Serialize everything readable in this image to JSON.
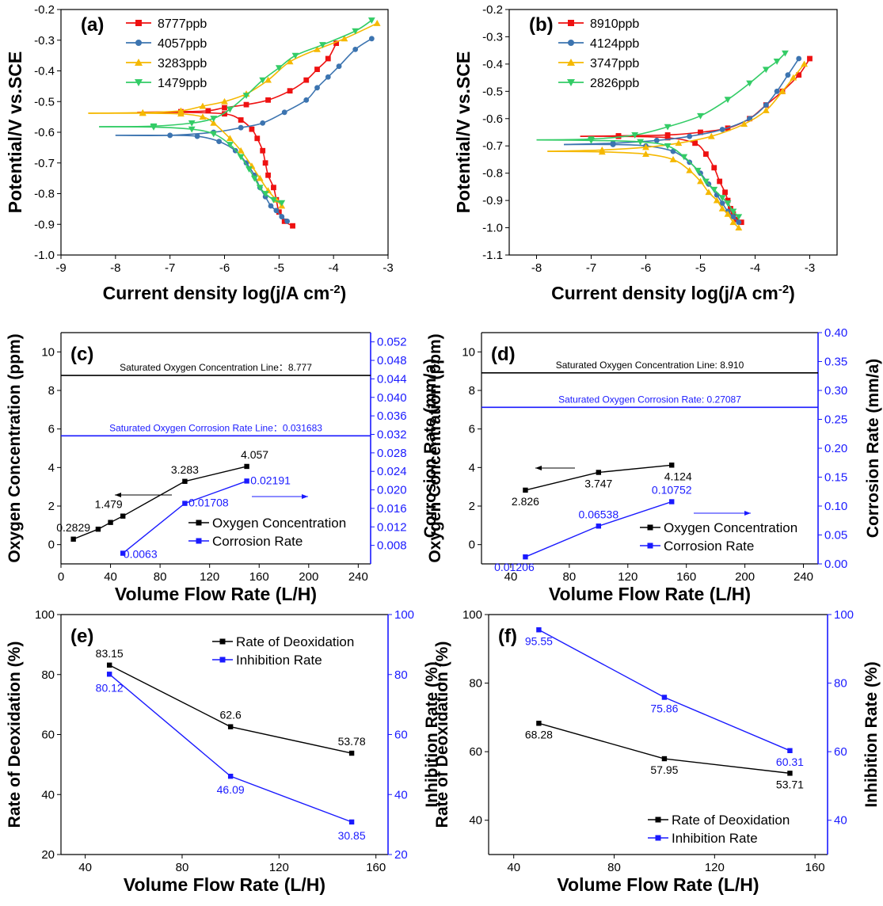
{
  "chart_data": [
    {
      "panel": "(a)",
      "type": "line",
      "xlabel": "Current density log(j/A cm-2)",
      "ylabel": "Potential/V vs.SCE",
      "xlim": [
        -9,
        -3
      ],
      "ylim": [
        -1.0,
        -0.2
      ],
      "xticks": [
        -9,
        -8,
        -7,
        -6,
        -5,
        -4,
        -3
      ],
      "yticks": [
        -1.0,
        -0.9,
        -0.8,
        -0.7,
        -0.6,
        -0.5,
        -0.4,
        -0.3,
        -0.2
      ],
      "legend_position": "top-left",
      "series": [
        {
          "name": "8777ppb",
          "color": "#ee1111",
          "marker": "square",
          "x": [
            -7.6,
            -6.8,
            -6.0,
            -5.7,
            -5.5,
            -5.4,
            -5.3,
            -5.25,
            -5.2,
            -5.1,
            -5.05,
            -5.0,
            -4.9,
            -4.75
          ],
          "y": [
            -0.535,
            -0.535,
            -0.54,
            -0.56,
            -0.59,
            -0.62,
            -0.66,
            -0.7,
            -0.74,
            -0.78,
            -0.82,
            -0.86,
            -0.89,
            -0.905
          ]
        },
        {
          "name": "8777ppb",
          "color": "#ee1111",
          "marker": "square",
          "x": [
            -7.6,
            -6.8,
            -6.3,
            -6.0,
            -5.6,
            -5.2,
            -4.8,
            -4.5,
            -4.3,
            -4.1,
            -3.95
          ],
          "y": [
            -0.535,
            -0.533,
            -0.53,
            -0.52,
            -0.51,
            -0.495,
            -0.465,
            -0.43,
            -0.395,
            -0.36,
            -0.31
          ]
        },
        {
          "name": "4057ppb",
          "color": "#3c74b0",
          "marker": "circle",
          "x": [
            -8.0,
            -7.0,
            -6.5,
            -6.1,
            -5.8,
            -5.6,
            -5.45,
            -5.35,
            -5.25,
            -5.15,
            -5.05,
            -4.95,
            -4.85
          ],
          "y": [
            -0.61,
            -0.61,
            -0.613,
            -0.63,
            -0.66,
            -0.7,
            -0.74,
            -0.78,
            -0.81,
            -0.84,
            -0.855,
            -0.875,
            -0.89
          ]
        },
        {
          "name": "4057ppb",
          "color": "#3c74b0",
          "marker": "circle",
          "x": [
            -8.0,
            -7.0,
            -6.2,
            -5.7,
            -5.3,
            -4.9,
            -4.5,
            -4.3,
            -4.1,
            -3.9,
            -3.6,
            -3.3
          ],
          "y": [
            -0.61,
            -0.61,
            -0.6,
            -0.585,
            -0.57,
            -0.535,
            -0.495,
            -0.455,
            -0.42,
            -0.385,
            -0.33,
            -0.295
          ]
        },
        {
          "name": "3283ppb",
          "color": "#f5b800",
          "marker": "triangle-up",
          "x": [
            -8.5,
            -7.5,
            -6.8,
            -6.4,
            -6.2,
            -5.9,
            -5.7,
            -5.5,
            -5.35,
            -5.2,
            -5.05,
            -4.95
          ],
          "y": [
            -0.538,
            -0.538,
            -0.54,
            -0.55,
            -0.57,
            -0.62,
            -0.66,
            -0.71,
            -0.75,
            -0.79,
            -0.82,
            -0.84
          ]
        },
        {
          "name": "3283ppb",
          "color": "#f5b800",
          "marker": "triangle-up",
          "x": [
            -8.5,
            -7.5,
            -6.8,
            -6.4,
            -6.0,
            -5.6,
            -5.2,
            -4.8,
            -4.3,
            -3.8,
            -3.2
          ],
          "y": [
            -0.538,
            -0.536,
            -0.53,
            -0.515,
            -0.5,
            -0.475,
            -0.43,
            -0.37,
            -0.33,
            -0.295,
            -0.245
          ]
        },
        {
          "name": "1479ppb",
          "color": "#33cc66",
          "marker": "triangle-down",
          "x": [
            -8.3,
            -7.3,
            -6.6,
            -6.2,
            -5.9,
            -5.7,
            -5.55,
            -5.45,
            -5.35,
            -5.25,
            -5.1,
            -4.95
          ],
          "y": [
            -0.582,
            -0.583,
            -0.59,
            -0.605,
            -0.64,
            -0.68,
            -0.72,
            -0.75,
            -0.78,
            -0.8,
            -0.82,
            -0.83
          ]
        },
        {
          "name": "1479ppb",
          "color": "#33cc66",
          "marker": "triangle-down",
          "x": [
            -8.3,
            -7.3,
            -6.6,
            -6.2,
            -5.9,
            -5.6,
            -5.3,
            -5.0,
            -4.7,
            -4.2,
            -3.6,
            -3.3
          ],
          "y": [
            -0.582,
            -0.58,
            -0.57,
            -0.555,
            -0.525,
            -0.48,
            -0.43,
            -0.39,
            -0.35,
            -0.315,
            -0.27,
            -0.235
          ]
        }
      ]
    },
    {
      "panel": "(b)",
      "type": "line",
      "xlabel": "Current density log(j/A cm-2)",
      "ylabel": "Potential/V vs.SCE",
      "xlim": [
        -8.5,
        -2.5
      ],
      "ylim": [
        -1.1,
        -0.2
      ],
      "xticks": [
        -8,
        -7,
        -6,
        -5,
        -4,
        -3
      ],
      "yticks": [
        -1.1,
        -1.0,
        -0.9,
        -0.8,
        -0.7,
        -0.6,
        -0.5,
        -0.4,
        -0.3,
        -0.2
      ],
      "legend_position": "top-left",
      "series": [
        {
          "name": "8910ppb",
          "color": "#ee1111",
          "marker": "square",
          "x": [
            -7.2,
            -6.5,
            -5.6,
            -5.1,
            -4.9,
            -4.75,
            -4.65,
            -4.55,
            -4.5,
            -4.45,
            -4.4,
            -4.35,
            -4.25
          ],
          "y": [
            -0.665,
            -0.665,
            -0.67,
            -0.69,
            -0.73,
            -0.78,
            -0.83,
            -0.87,
            -0.9,
            -0.93,
            -0.95,
            -0.97,
            -0.98
          ]
        },
        {
          "name": "8910ppb",
          "color": "#ee1111",
          "marker": "square",
          "x": [
            -7.2,
            -6.5,
            -5.6,
            -5.0,
            -4.5,
            -4.1,
            -3.8,
            -3.5,
            -3.2,
            -3.0
          ],
          "y": [
            -0.665,
            -0.663,
            -0.66,
            -0.65,
            -0.635,
            -0.6,
            -0.55,
            -0.5,
            -0.44,
            -0.38
          ]
        },
        {
          "name": "4124ppb",
          "color": "#3c74b0",
          "marker": "circle",
          "x": [
            -7.5,
            -6.6,
            -6.0,
            -5.5,
            -5.2,
            -5.0,
            -4.85,
            -4.7,
            -4.6,
            -4.5,
            -4.4,
            -4.3
          ],
          "y": [
            -0.695,
            -0.695,
            -0.7,
            -0.72,
            -0.76,
            -0.8,
            -0.84,
            -0.88,
            -0.91,
            -0.94,
            -0.96,
            -0.98
          ]
        },
        {
          "name": "4124ppb",
          "color": "#3c74b0",
          "marker": "circle",
          "x": [
            -7.5,
            -6.6,
            -5.8,
            -5.2,
            -4.6,
            -4.1,
            -3.8,
            -3.6,
            -3.4,
            -3.2
          ],
          "y": [
            -0.695,
            -0.69,
            -0.68,
            -0.665,
            -0.64,
            -0.6,
            -0.55,
            -0.5,
            -0.44,
            -0.38
          ]
        },
        {
          "name": "3747ppb",
          "color": "#f5b800",
          "marker": "triangle-up",
          "x": [
            -7.8,
            -6.8,
            -6.0,
            -5.5,
            -5.2,
            -5.0,
            -4.85,
            -4.7,
            -4.6,
            -4.5,
            -4.4,
            -4.3
          ],
          "y": [
            -0.72,
            -0.722,
            -0.73,
            -0.75,
            -0.79,
            -0.83,
            -0.87,
            -0.9,
            -0.93,
            -0.95,
            -0.98,
            -1.0
          ]
        },
        {
          "name": "3747ppb",
          "color": "#f5b800",
          "marker": "triangle-up",
          "x": [
            -7.8,
            -6.8,
            -6.0,
            -5.4,
            -4.8,
            -4.2,
            -3.8,
            -3.5,
            -3.3,
            -3.1
          ],
          "y": [
            -0.72,
            -0.715,
            -0.705,
            -0.69,
            -0.665,
            -0.62,
            -0.57,
            -0.5,
            -0.45,
            -0.4
          ]
        },
        {
          "name": "2826ppb",
          "color": "#33cc66",
          "marker": "triangle-down",
          "x": [
            -8.0,
            -7.0,
            -6.1,
            -5.6,
            -5.3,
            -5.05,
            -4.9,
            -4.75,
            -4.6,
            -4.5,
            -4.4,
            -4.3
          ],
          "y": [
            -0.678,
            -0.68,
            -0.685,
            -0.7,
            -0.74,
            -0.79,
            -0.83,
            -0.86,
            -0.89,
            -0.91,
            -0.94,
            -0.96
          ]
        },
        {
          "name": "2826ppb",
          "color": "#33cc66",
          "marker": "triangle-down",
          "x": [
            -8.0,
            -7.0,
            -6.2,
            -5.6,
            -5.0,
            -4.5,
            -4.1,
            -3.8,
            -3.6,
            -3.45
          ],
          "y": [
            -0.678,
            -0.675,
            -0.66,
            -0.63,
            -0.59,
            -0.53,
            -0.47,
            -0.42,
            -0.39,
            -0.36
          ]
        }
      ]
    },
    {
      "panel": "(c)",
      "type": "line",
      "xlabel": "Volume Flow Rate (L/H)",
      "ylabel": "Oxygen Concentration (ppm)",
      "ylabel_right": "Corrosion Rate (mm/a)",
      "xlim": [
        0,
        250
      ],
      "ylim": [
        -1,
        11
      ],
      "ylim_right": [
        0.004,
        0.054
      ],
      "xticks": [
        0,
        40,
        80,
        120,
        160,
        200,
        240
      ],
      "yticks": [
        0,
        2,
        4,
        6,
        8,
        10
      ],
      "yticks_right": [
        "0.008",
        "0.012",
        "0.016",
        "0.020",
        "0.024",
        "0.028",
        "0.032",
        "0.036",
        "0.040",
        "0.044",
        "0.048",
        "0.052"
      ],
      "legend_position": "center-right",
      "reference_lines": [
        {
          "label": "Saturated Oxygen Concentration Line：8.777",
          "axis": "left",
          "value": 8.777,
          "color": "#000000"
        },
        {
          "label": "Saturated Oxygen Corrosion Rate Line：0.031683",
          "axis": "right",
          "value": 0.031683,
          "color": "#1a1aff"
        }
      ],
      "series": [
        {
          "name": "Oxygen Concentration",
          "axis": "left",
          "color": "#000000",
          "marker": "square",
          "x": [
            10,
            30,
            40,
            50,
            100,
            150
          ],
          "y": [
            0.2829,
            0.8,
            1.15,
            1.479,
            3.283,
            4.057
          ],
          "labels": [
            "0.2829",
            "",
            "",
            "1.479",
            "3.283",
            "4.057"
          ]
        },
        {
          "name": "Corrosion Rate",
          "axis": "right",
          "color": "#1a1aff",
          "marker": "square",
          "x": [
            50,
            100,
            150
          ],
          "y": [
            0.0063,
            0.01708,
            0.02191
          ],
          "labels": [
            "0.0063",
            "0.01708",
            "0.02191"
          ]
        }
      ]
    },
    {
      "panel": "(d)",
      "type": "line",
      "xlabel": "Volume Flow Rate (L/H)",
      "ylabel": "Oxygen Concentration (ppm)",
      "ylabel_right": "Corrosion Rate (mm/a)",
      "xlim": [
        20,
        250
      ],
      "ylim": [
        -1,
        11
      ],
      "ylim_right": [
        0,
        0.4
      ],
      "xticks": [
        40,
        80,
        120,
        160,
        200,
        240
      ],
      "yticks": [
        0,
        2,
        4,
        6,
        8,
        10
      ],
      "yticks_right": [
        "0.00",
        "0.05",
        "0.10",
        "0.15",
        "0.20",
        "0.25",
        "0.30",
        "0.35",
        "0.40"
      ],
      "legend_position": "center-right",
      "reference_lines": [
        {
          "label": "Saturated Oxygen Concentration Line: 8.910",
          "axis": "left",
          "value": 8.91,
          "color": "#000000"
        },
        {
          "label": "Saturated Oxygen Corrosion Rate: 0.27087",
          "axis": "right",
          "value": 0.27087,
          "color": "#1a1aff"
        }
      ],
      "series": [
        {
          "name": "Oxygen Concentration",
          "axis": "left",
          "color": "#000000",
          "marker": "square",
          "x": [
            50,
            100,
            150
          ],
          "y": [
            2.826,
            3.747,
            4.124
          ],
          "labels": [
            "2.826",
            "3.747",
            "4.124"
          ]
        },
        {
          "name": "Corrosion Rate",
          "axis": "right",
          "color": "#1a1aff",
          "marker": "square",
          "x": [
            50,
            100,
            150
          ],
          "y": [
            0.01206,
            0.06538,
            0.10752
          ],
          "labels": [
            "0.01206",
            "0.06538",
            "0.10752"
          ]
        }
      ]
    },
    {
      "panel": "(e)",
      "type": "line",
      "xlabel": "Volume Flow Rate (L/H)",
      "ylabel": "Rate of Deoxidation (%)",
      "ylabel_right": "Inhibition Rate (%)",
      "xlim": [
        30,
        165
      ],
      "ylim": [
        20,
        100
      ],
      "ylim_right": [
        20,
        100
      ],
      "xticks": [
        40,
        80,
        120,
        160
      ],
      "yticks": [
        20,
        40,
        60,
        80,
        100
      ],
      "yticks_right": [
        "20",
        "40",
        "60",
        "80",
        "100"
      ],
      "legend_position": "top-right",
      "series": [
        {
          "name": "Rate of Deoxidation",
          "axis": "left",
          "color": "#000000",
          "marker": "square",
          "x": [
            50,
            100,
            150
          ],
          "y": [
            83.15,
            62.6,
            53.78
          ],
          "labels": [
            "83.15",
            "62.6",
            "53.78"
          ]
        },
        {
          "name": "Inhibition Rate",
          "axis": "right",
          "color": "#1a1aff",
          "marker": "square",
          "x": [
            50,
            100,
            150
          ],
          "y": [
            80.12,
            46.09,
            30.85
          ],
          "labels": [
            "80.12",
            "46.09",
            "30.85"
          ]
        }
      ]
    },
    {
      "panel": "(f)",
      "type": "line",
      "xlabel": "Volume Flow Rate (L/H)",
      "ylabel": "Rate of Deoxidation (%)",
      "ylabel_right": "Inhibition Rate (%)",
      "xlim": [
        30,
        165
      ],
      "ylim": [
        30,
        100
      ],
      "ylim_right": [
        30,
        100
      ],
      "xticks": [
        40,
        80,
        120,
        160
      ],
      "yticks": [
        40,
        60,
        80,
        100
      ],
      "yticks_right": [
        "40",
        "60",
        "80",
        "100"
      ],
      "legend_position": "bottom-right",
      "series": [
        {
          "name": "Rate of Deoxidation",
          "axis": "left",
          "color": "#000000",
          "marker": "square",
          "x": [
            50,
            100,
            150
          ],
          "y": [
            68.28,
            57.95,
            53.71
          ],
          "labels": [
            "68.28",
            "57.95",
            "53.71"
          ]
        },
        {
          "name": "Inhibition Rate",
          "axis": "right",
          "color": "#1a1aff",
          "marker": "square",
          "x": [
            50,
            100,
            150
          ],
          "y": [
            95.55,
            75.86,
            60.31
          ],
          "labels": [
            "95.55",
            "75.86",
            "60.31"
          ]
        }
      ]
    }
  ]
}
